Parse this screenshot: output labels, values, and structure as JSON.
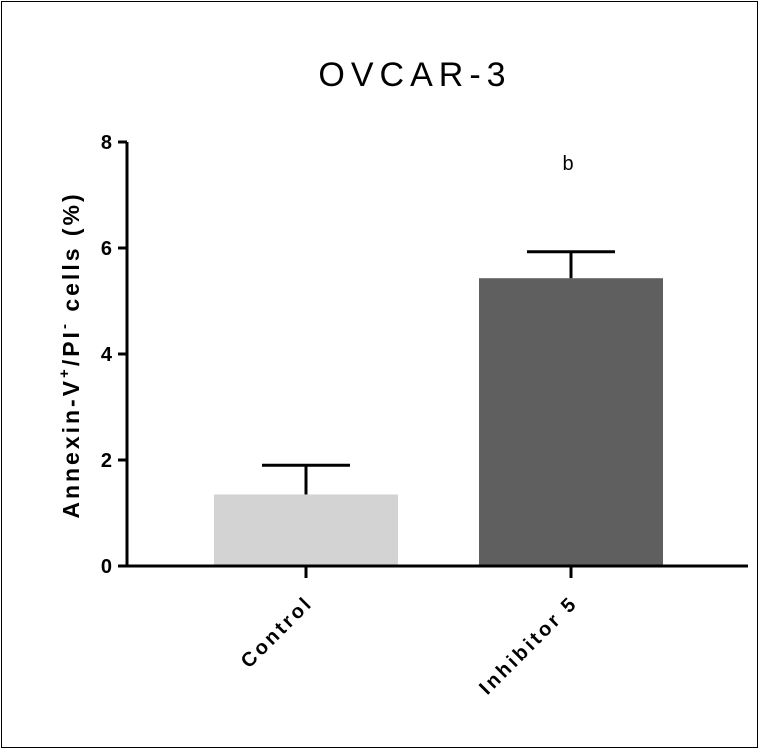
{
  "chart_data": {
    "type": "bar",
    "title": "OVCAR-3",
    "categories": [
      "Control",
      "Inhibitor 5"
    ],
    "values": [
      1.35,
      5.43
    ],
    "errors": [
      0.55,
      0.5
    ],
    "annotations": [
      "",
      "b"
    ],
    "ylabel": {
      "part1": "Annexin-V",
      "sup1": "+",
      "part2": "/PI",
      "sup2": "-",
      "part3": " cells (%)"
    },
    "xlabel": "",
    "ylim": [
      0,
      8
    ],
    "yticks": [
      "0",
      "2",
      "4",
      "6",
      "8"
    ],
    "colors": [
      "#d3d3d3",
      "#5f5f5f"
    ],
    "grid": false,
    "legend": "none"
  }
}
